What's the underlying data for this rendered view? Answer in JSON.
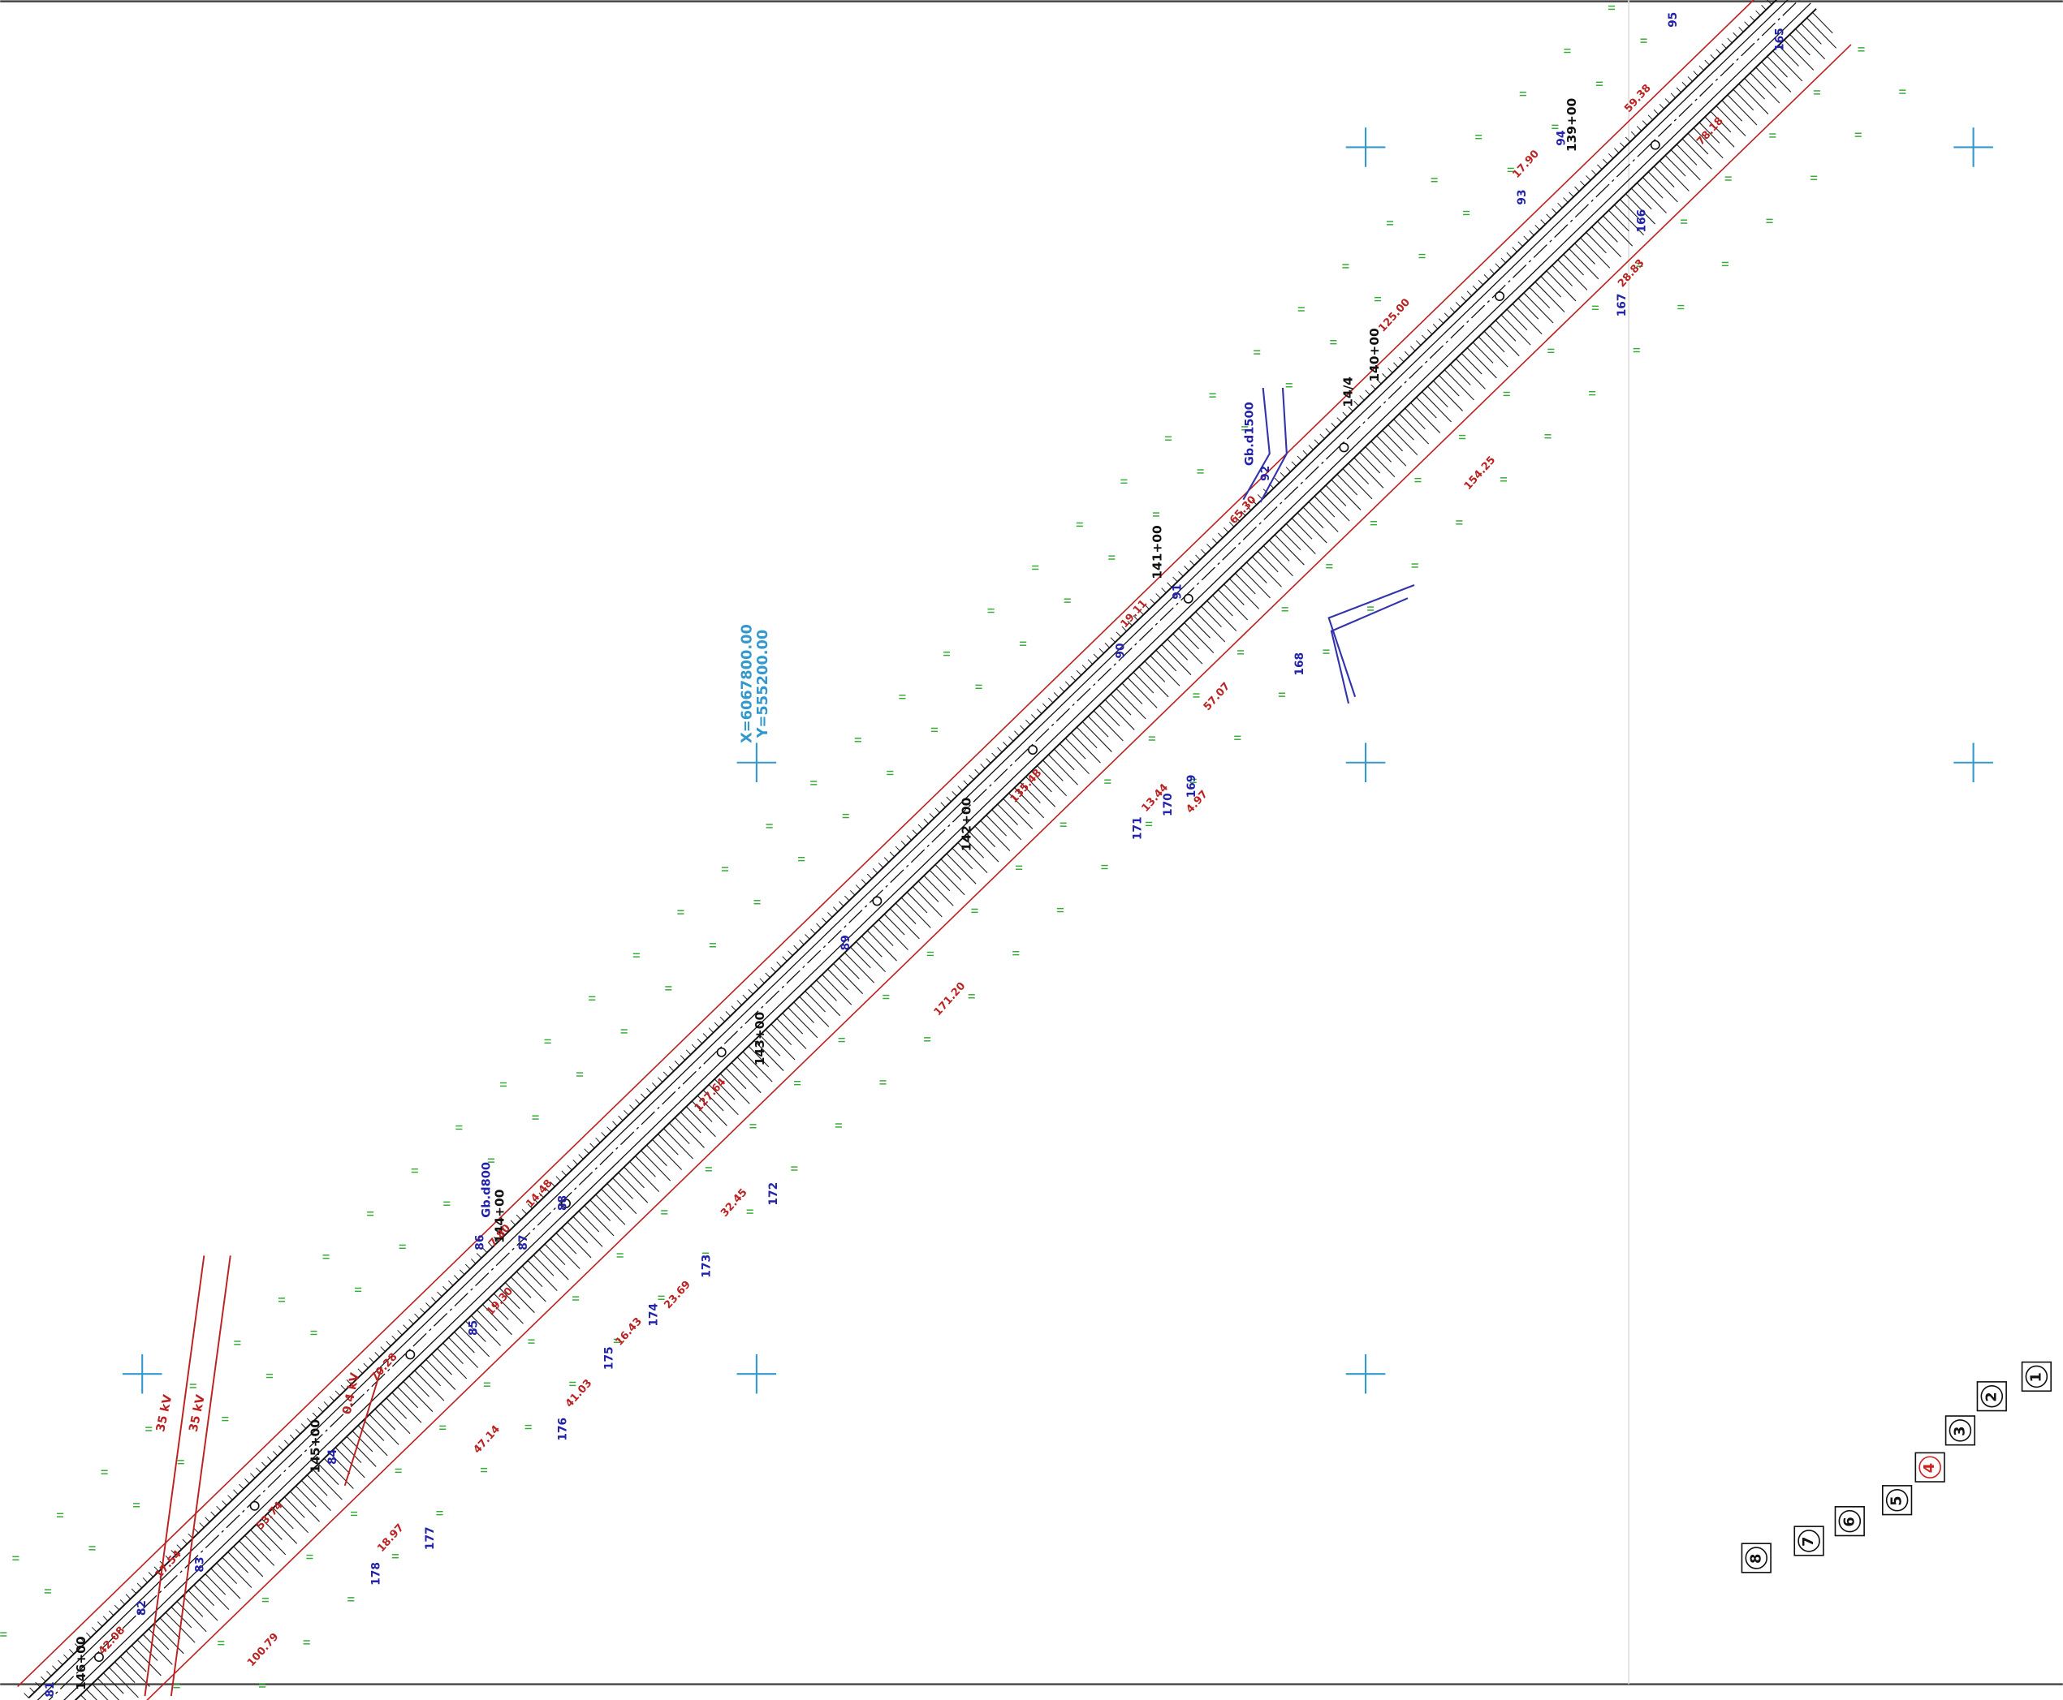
{
  "stations": [
    "146+00",
    "145+00",
    "144+00",
    "143+00",
    "142+00",
    "141+00",
    "140+00",
    "139+00",
    "14/4"
  ],
  "points": [
    "81",
    "82",
    "83",
    "84",
    "85",
    "86",
    "87",
    "88",
    "89",
    "90",
    "91",
    "92",
    "93",
    "94",
    "95",
    "165",
    "166",
    "167",
    "168",
    "169",
    "170",
    "171",
    "172",
    "173",
    "174",
    "175",
    "176",
    "177",
    "178"
  ],
  "distances": [
    "42.08",
    "17.54",
    "53.74",
    "70.28",
    "19.30",
    "7.80",
    "14.48",
    "127.64",
    "135.48",
    "19.11",
    "65.30",
    "125.00",
    "17.90",
    "59.38",
    "78.18",
    "28.83",
    "154.25",
    "57.07",
    "13.44",
    "4.97",
    "171.20",
    "32.45",
    "23.69",
    "16.43",
    "41.03",
    "47.14",
    "18.97",
    "100.79"
  ],
  "power_lines": [
    "35 kV",
    "35 kV",
    "0.4 kV"
  ],
  "pipes": [
    "Gb.d800",
    "Gb.d1500"
  ],
  "grid_coordinates": [
    "X=6067800.00",
    "Y=555200.00"
  ],
  "sheet_index": [
    "1",
    "2",
    "3",
    "4",
    "5",
    "6",
    "7",
    "8"
  ]
}
